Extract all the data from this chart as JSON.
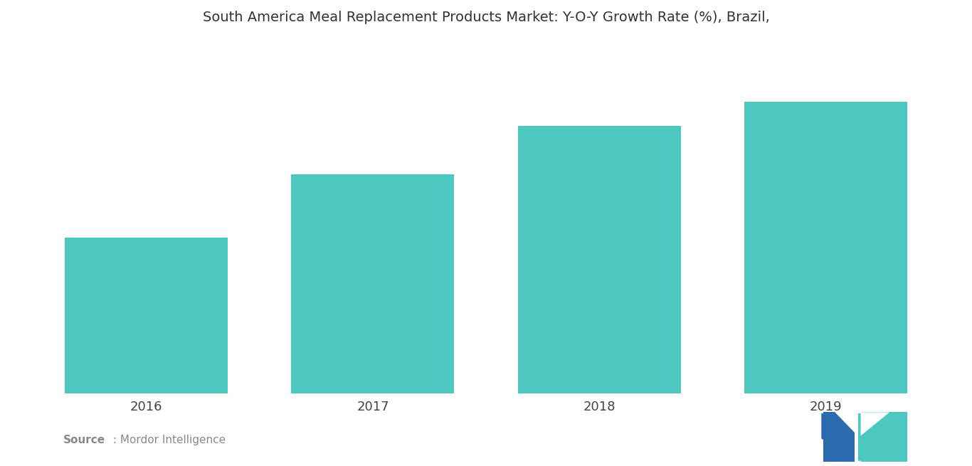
{
  "title": "South America Meal Replacement Products Market: Y-O-Y Growth Rate (%), Brazil,",
  "categories": [
    "2016",
    "2017",
    "2018",
    "2019"
  ],
  "values": [
    3.2,
    4.5,
    5.5,
    6.0
  ],
  "bar_color": "#4DC8C0",
  "background_color": "#ffffff",
  "title_fontsize": 14,
  "tick_fontsize": 13,
  "ylabel": "",
  "xlabel": "",
  "source_bold": "Source",
  "source_normal": " : Mordor Intelligence",
  "source_fontsize": 11,
  "ylim": [
    0,
    7.2
  ],
  "bar_width": 0.72,
  "logo_color_blue": "#2B6CB0",
  "logo_color_teal": "#4DC8C0"
}
